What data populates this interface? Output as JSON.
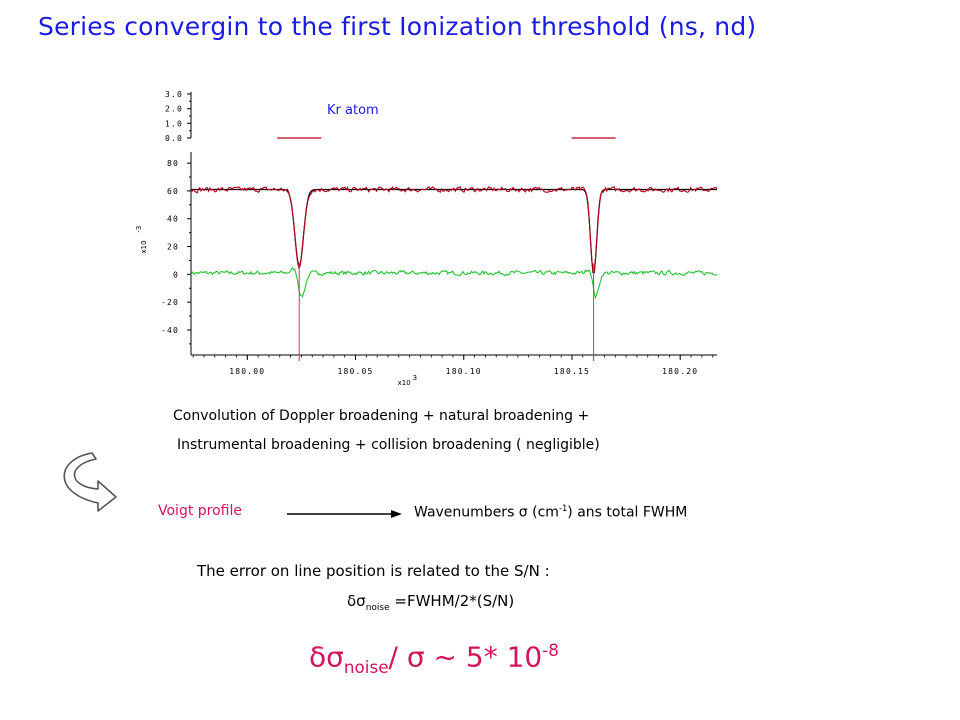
{
  "slide": {
    "title": "Series convergin to the first Ionization threshold (ns, nd)",
    "convolution_line1": "Convolution of Doppler broadening + natural broadening +",
    "convolution_line2": "Instrumental broadening + collision broadening ( negligible)",
    "voigt_label": "Voigt profile",
    "wavenumbers_prefix": "Wavenumbers σ (cm",
    "wavenumbers_exp": "-1",
    "wavenumbers_suffix": ") ans  total FWHM",
    "error_text": "The error on line position is  related to the S/N :",
    "formula_lhs": "δσ",
    "formula_sub": "noise",
    "formula_rhs": " =FWHM/2*(S/N)",
    "big_lhs": "δσ",
    "big_sub": "noise",
    "big_mid": "/ σ ~ 5* 10",
    "big_exp": "-8",
    "colors": {
      "title": "#1a1ae6",
      "accent": "#d4145a",
      "spectrum": "#b0001a",
      "residual": "#22c32e",
      "marker": "#d0306a"
    }
  },
  "chart_data": {
    "type": "line",
    "annotation": "Kr atom",
    "xlabel": "x10",
    "xlabel_exp": "3",
    "ylabel": "x10",
    "ylabel_exp": "-3",
    "x_ticks": [
      "180.00",
      "180.05",
      "180.10",
      "180.15",
      "180.20"
    ],
    "x_tick_values": [
      180.0,
      180.05,
      180.1,
      180.15,
      180.2
    ],
    "xlim": [
      179.974,
      180.217
    ],
    "upper_panel": {
      "y_ticks": [
        "3.0",
        "2.0",
        "1.0",
        "0.0"
      ],
      "y_tick_values": [
        3,
        2,
        1,
        0
      ],
      "ylim": [
        0,
        3
      ]
    },
    "main_panel": {
      "y_ticks": [
        "80",
        "60",
        "40",
        "20",
        "0",
        "-20",
        "-40"
      ],
      "y_tick_values": [
        80,
        60,
        40,
        20,
        0,
        -20,
        -40
      ],
      "ylim": [
        -58,
        88
      ]
    },
    "line_positions": [
      180.024,
      180.16
    ],
    "series": [
      {
        "kind": "observed",
        "baseline": 61,
        "noise": 1.6,
        "dips": [
          {
            "x": 180.024,
            "depth": 55,
            "width": 0.0028
          },
          {
            "x": 180.16,
            "depth": 61,
            "width": 0.002
          }
        ]
      },
      {
        "kind": "fit",
        "baseline": 61,
        "dips": [
          {
            "x": 180.024,
            "depth": 55,
            "width": 0.0028
          },
          {
            "x": 180.16,
            "depth": 61,
            "width": 0.002
          }
        ]
      },
      {
        "kind": "residual",
        "baseline": 1,
        "noise": 1.3,
        "features": [
          {
            "x": 180.024,
            "amp": -18,
            "width": 0.0025
          },
          {
            "x": 180.16,
            "amp": -18,
            "width": 0.0022
          }
        ]
      }
    ]
  }
}
